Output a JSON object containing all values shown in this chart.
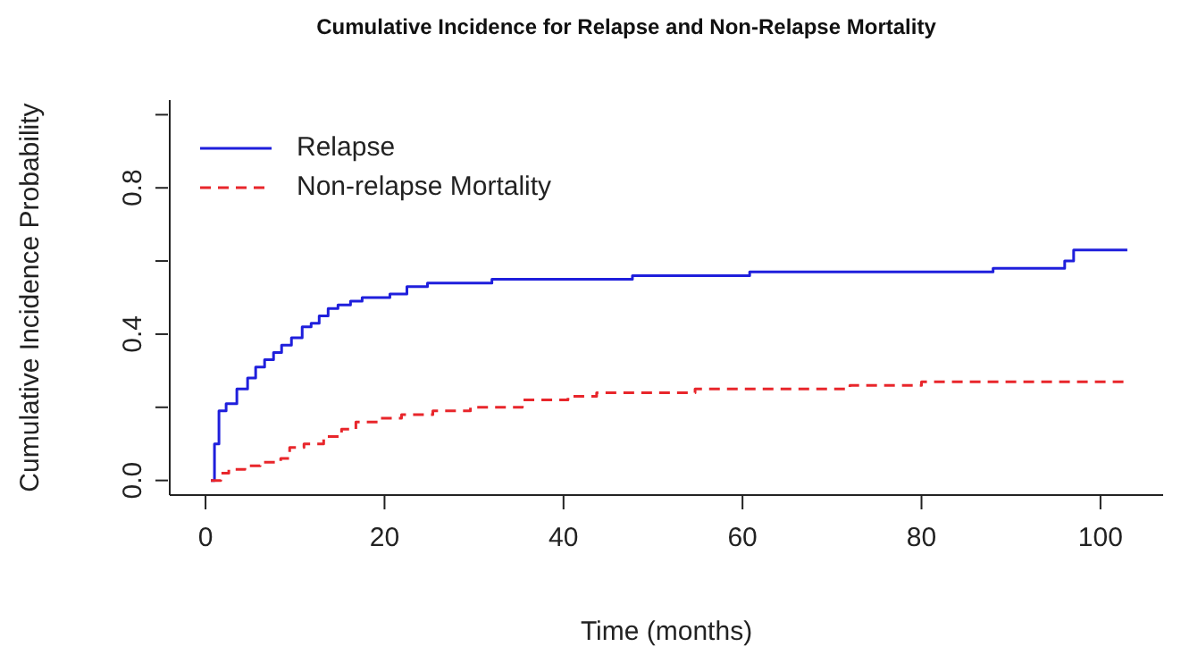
{
  "chart_data": {
    "type": "step",
    "title": "Cumulative Incidence for Relapse and Non-Relapse Mortality",
    "xlabel": "Time (months)",
    "ylabel": "Cumulative Incidence Probability",
    "xlim": [
      -4,
      107
    ],
    "xticks": [
      0,
      20,
      40,
      60,
      80,
      100
    ],
    "ylim": [
      -0.04,
      1.04
    ],
    "yticks": [
      {
        "value": 0,
        "label": "0.0"
      },
      {
        "value": 0.2,
        "label": null
      },
      {
        "value": 0.4,
        "label": "0.4"
      },
      {
        "value": 0.6,
        "label": null
      },
      {
        "value": 0.8,
        "label": "0.8"
      },
      {
        "value": 1,
        "label": null
      }
    ],
    "grid": false,
    "legend": "top left",
    "marker": "none",
    "series": [
      {
        "name": "Relapse",
        "color": "#1f1fdc",
        "line_style": "solid",
        "x": [
          0.6,
          1.0,
          1.5,
          2.3,
          3.5,
          4.7,
          5.6,
          6.6,
          7.6,
          8.5,
          9.6,
          10.8,
          11.8,
          12.7,
          13.7,
          14.8,
          16.2,
          17.5,
          20.6,
          22.5,
          24.8,
          28,
          32,
          37,
          47.7,
          58,
          60.8,
          88,
          96,
          97,
          103
        ],
        "values": [
          0,
          0.1,
          0.19,
          0.21,
          0.25,
          0.28,
          0.31,
          0.33,
          0.35,
          0.37,
          0.39,
          0.42,
          0.43,
          0.45,
          0.47,
          0.48,
          0.49,
          0.5,
          0.51,
          0.53,
          0.54,
          0.54,
          0.55,
          0.55,
          0.56,
          0.56,
          0.57,
          0.58,
          0.6,
          0.63,
          0.63
        ]
      },
      {
        "name": "Non-relapse Mortality",
        "color": "#e8262b",
        "line_style": "dashed",
        "x": [
          0.6,
          1.7,
          2.6,
          4.4,
          6.1,
          8.4,
          9.4,
          11,
          13.2,
          15.2,
          16.8,
          19.3,
          21.9,
          25.4,
          29.6,
          35.4,
          40.5,
          43.7,
          54.7,
          72,
          80,
          103
        ],
        "values": [
          0,
          0.02,
          0.03,
          0.04,
          0.05,
          0.06,
          0.09,
          0.1,
          0.12,
          0.14,
          0.16,
          0.17,
          0.18,
          0.19,
          0.2,
          0.22,
          0.23,
          0.24,
          0.25,
          0.26,
          0.27,
          0.27
        ]
      }
    ]
  }
}
